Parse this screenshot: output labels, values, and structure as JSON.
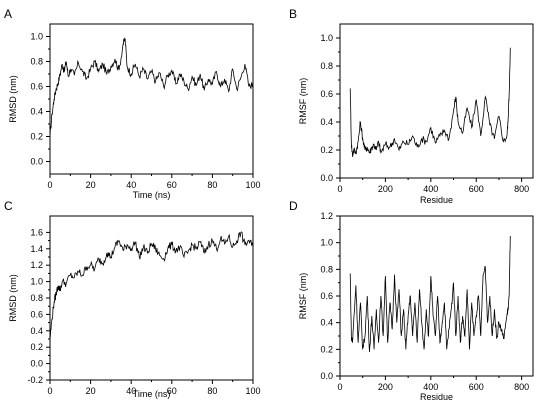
{
  "chart_data": [
    {
      "type": "line",
      "panel_label": "A",
      "title": "",
      "xlabel": "Time (ns)",
      "ylabel": "RMSD (nm)",
      "xlim": [
        0,
        100
      ],
      "ylim": [
        -0.1,
        1.1
      ],
      "xticks": [
        0,
        20,
        40,
        60,
        80,
        100
      ],
      "xtick_labels": [
        "0",
        "20",
        "40",
        "60",
        "80",
        "100"
      ],
      "yticks": [
        0.0,
        0.2,
        0.4,
        0.6,
        0.8,
        1.0
      ],
      "ytick_labels": [
        "0.0",
        "0.2",
        "0.4",
        "0.6",
        "0.8",
        "1.0"
      ],
      "grid": false,
      "series": [
        {
          "x": [
            0,
            1,
            2,
            3,
            4,
            5,
            6,
            7,
            8,
            9,
            10,
            12,
            14,
            16,
            18,
            20,
            22,
            24,
            26,
            28,
            30,
            32,
            34,
            36,
            37,
            38,
            40,
            42,
            44,
            46,
            48,
            50,
            52,
            54,
            56,
            58,
            60,
            62,
            64,
            66,
            68,
            70,
            72,
            74,
            76,
            78,
            80,
            82,
            84,
            86,
            88,
            90,
            92,
            94,
            96,
            98,
            100
          ],
          "y": [
            0.2,
            0.38,
            0.5,
            0.58,
            0.63,
            0.7,
            0.78,
            0.72,
            0.8,
            0.68,
            0.74,
            0.69,
            0.79,
            0.72,
            0.66,
            0.74,
            0.8,
            0.72,
            0.78,
            0.7,
            0.76,
            0.82,
            0.73,
            0.94,
            0.98,
            0.76,
            0.7,
            0.78,
            0.68,
            0.74,
            0.66,
            0.72,
            0.64,
            0.71,
            0.6,
            0.69,
            0.73,
            0.62,
            0.7,
            0.64,
            0.58,
            0.68,
            0.61,
            0.7,
            0.57,
            0.66,
            0.62,
            0.72,
            0.6,
            0.66,
            0.56,
            0.74,
            0.58,
            0.67,
            0.78,
            0.6,
            0.62
          ]
        }
      ]
    },
    {
      "type": "line",
      "panel_label": "B",
      "title": "",
      "xlabel": "Residue",
      "ylabel": "RMSF (nm)",
      "xlim": [
        0,
        850
      ],
      "ylim": [
        0.0,
        1.1
      ],
      "xticks": [
        0,
        200,
        400,
        600,
        800
      ],
      "xtick_labels": [
        "0",
        "200",
        "400",
        "600",
        "800"
      ],
      "yticks": [
        0.0,
        0.2,
        0.4,
        0.6,
        0.8,
        1.0
      ],
      "ytick_labels": [
        "0.0",
        "0.2",
        "0.4",
        "0.6",
        "0.8",
        "1.0"
      ],
      "grid": false,
      "series": [
        {
          "x": [
            45,
            50,
            55,
            60,
            70,
            80,
            90,
            100,
            110,
            120,
            130,
            140,
            150,
            160,
            170,
            180,
            200,
            220,
            240,
            260,
            280,
            300,
            320,
            340,
            360,
            380,
            400,
            420,
            440,
            460,
            480,
            500,
            510,
            520,
            540,
            560,
            580,
            600,
            620,
            640,
            660,
            680,
            700,
            720,
            735,
            740,
            745,
            750
          ],
          "y": [
            0.64,
            0.25,
            0.16,
            0.2,
            0.18,
            0.26,
            0.4,
            0.28,
            0.2,
            0.22,
            0.18,
            0.22,
            0.24,
            0.2,
            0.26,
            0.18,
            0.24,
            0.22,
            0.28,
            0.2,
            0.26,
            0.24,
            0.3,
            0.22,
            0.28,
            0.26,
            0.36,
            0.25,
            0.3,
            0.34,
            0.28,
            0.48,
            0.58,
            0.4,
            0.32,
            0.5,
            0.36,
            0.56,
            0.3,
            0.58,
            0.38,
            0.28,
            0.44,
            0.26,
            0.3,
            0.4,
            0.6,
            0.93
          ]
        }
      ]
    },
    {
      "type": "line",
      "panel_label": "C",
      "title": "",
      "xlabel": "Time (ns)",
      "ylabel": "RMSD (nm)",
      "xlim": [
        0,
        100
      ],
      "ylim": [
        -0.2,
        1.8
      ],
      "xticks": [
        0,
        20,
        40,
        60,
        80,
        100
      ],
      "xtick_labels": [
        "0",
        "20",
        "40",
        "60",
        "80",
        "100"
      ],
      "yticks": [
        -0.2,
        0.0,
        0.2,
        0.4,
        0.6,
        0.8,
        1.0,
        1.2,
        1.4,
        1.6
      ],
      "ytick_labels": [
        "-0.2",
        "0.0",
        "0.2",
        "0.4",
        "0.6",
        "0.8",
        "1.0",
        "1.2",
        "1.4",
        "1.6"
      ],
      "grid": false,
      "series": [
        {
          "x": [
            0,
            1,
            2,
            3,
            4,
            5,
            6,
            8,
            10,
            12,
            14,
            16,
            18,
            20,
            22,
            24,
            26,
            28,
            30,
            32,
            34,
            36,
            38,
            40,
            42,
            44,
            46,
            48,
            50,
            52,
            54,
            56,
            58,
            60,
            62,
            64,
            66,
            68,
            70,
            72,
            74,
            76,
            78,
            80,
            82,
            84,
            86,
            88,
            90,
            92,
            94,
            96,
            98,
            100
          ],
          "y": [
            0.3,
            0.55,
            0.75,
            0.85,
            0.95,
            0.9,
            1.0,
            0.98,
            1.08,
            1.05,
            1.12,
            1.08,
            1.18,
            1.2,
            1.15,
            1.28,
            1.22,
            1.35,
            1.3,
            1.42,
            1.5,
            1.38,
            1.45,
            1.4,
            1.48,
            1.3,
            1.42,
            1.35,
            1.46,
            1.4,
            1.32,
            1.28,
            1.4,
            1.45,
            1.38,
            1.42,
            1.3,
            1.36,
            1.45,
            1.4,
            1.48,
            1.35,
            1.45,
            1.5,
            1.4,
            1.52,
            1.46,
            1.55,
            1.42,
            1.5,
            1.6,
            1.45,
            1.5,
            1.42
          ]
        }
      ]
    },
    {
      "type": "line",
      "panel_label": "D",
      "title": "",
      "xlabel": "Residue",
      "ylabel": "RMSF (nm)",
      "xlim": [
        0,
        850
      ],
      "ylim": [
        0.0,
        1.2
      ],
      "xticks": [
        0,
        200,
        400,
        600,
        800
      ],
      "xtick_labels": [
        "0",
        "200",
        "400",
        "600",
        "800"
      ],
      "yticks": [
        0.0,
        0.2,
        0.4,
        0.6,
        0.8,
        1.0,
        1.2
      ],
      "ytick_labels": [
        "0.0",
        "0.2",
        "0.4",
        "0.6",
        "0.8",
        "1.0",
        "1.2"
      ],
      "grid": false,
      "series": [
        {
          "x": [
            45,
            50,
            55,
            60,
            70,
            80,
            90,
            100,
            110,
            120,
            130,
            140,
            150,
            160,
            170,
            180,
            190,
            200,
            210,
            220,
            230,
            240,
            250,
            260,
            270,
            280,
            290,
            300,
            310,
            320,
            330,
            340,
            350,
            360,
            370,
            380,
            390,
            400,
            410,
            420,
            430,
            440,
            450,
            460,
            470,
            480,
            490,
            500,
            510,
            520,
            530,
            540,
            550,
            560,
            570,
            580,
            590,
            600,
            610,
            620,
            630,
            640,
            650,
            660,
            670,
            680,
            690,
            700,
            710,
            720,
            735,
            740,
            745,
            750
          ],
          "y": [
            0.77,
            0.3,
            0.25,
            0.4,
            0.68,
            0.25,
            0.55,
            0.2,
            0.3,
            0.6,
            0.18,
            0.45,
            0.2,
            0.5,
            0.25,
            0.6,
            0.3,
            0.75,
            0.25,
            0.55,
            0.35,
            0.76,
            0.4,
            0.65,
            0.3,
            0.5,
            0.2,
            0.45,
            0.6,
            0.3,
            0.55,
            0.25,
            0.65,
            0.4,
            0.2,
            0.5,
            0.3,
            0.75,
            0.45,
            0.3,
            0.6,
            0.25,
            0.4,
            0.55,
            0.2,
            0.35,
            0.5,
            0.7,
            0.3,
            0.6,
            0.25,
            0.45,
            0.3,
            0.65,
            0.2,
            0.55,
            0.3,
            0.45,
            0.6,
            0.3,
            0.75,
            0.82,
            0.4,
            0.6,
            0.3,
            0.5,
            0.28,
            0.4,
            0.35,
            0.28,
            0.45,
            0.5,
            0.6,
            1.05
          ]
        }
      ]
    }
  ]
}
